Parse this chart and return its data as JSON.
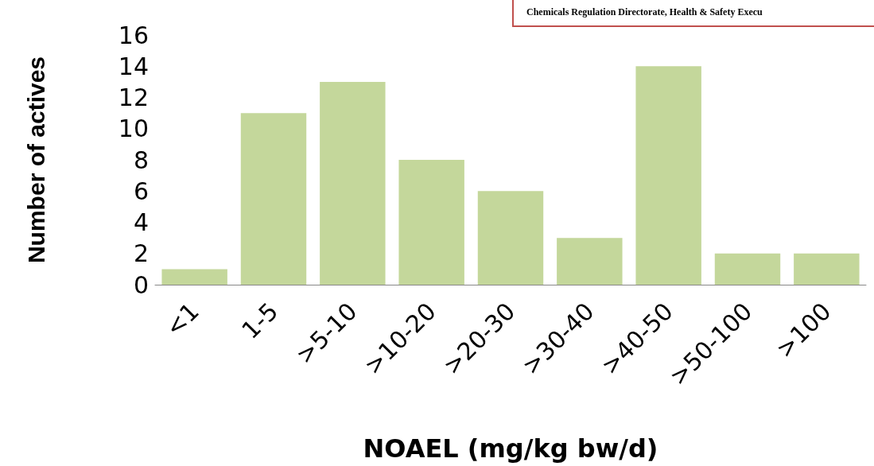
{
  "chart_data": {
    "type": "bar",
    "xlabel": "NOAEL (mg/kg bw/d)",
    "ylabel": "Number of actives",
    "categories": [
      "<1",
      "1-5",
      ">5-10",
      ">10-20",
      ">20-30",
      ">30-40",
      ">40-50",
      ">50-100",
      ">100"
    ],
    "values": [
      1,
      11,
      13,
      8,
      6,
      3,
      14,
      2,
      2
    ],
    "color": "#c4d79b",
    "ylim": [
      0,
      16
    ],
    "yticks": [
      0,
      2,
      4,
      6,
      8,
      10,
      12,
      14,
      16
    ],
    "grid": false,
    "annotations": [
      "Chemicals Regulation Directorate, Health & Safety Execu"
    ]
  }
}
